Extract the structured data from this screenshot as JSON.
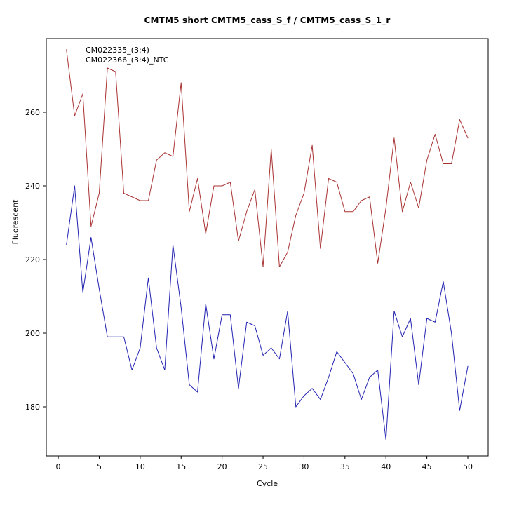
{
  "chart_data": {
    "type": "line",
    "title": "CMTM5 short CMTM5_cass_S_f / CMTM5_cass_S_1_r",
    "xlabel": "Cycle",
    "ylabel": "Fluorescent",
    "xlim": [
      -1.46,
      52.48
    ],
    "ylim": [
      166.67,
      280
    ],
    "xticks": [
      0,
      5,
      10,
      15,
      20,
      25,
      30,
      35,
      40,
      45,
      50
    ],
    "yticks": [
      180,
      200,
      220,
      240,
      260
    ],
    "grid": false,
    "legend_position": "top-left-inside",
    "x": [
      1,
      2,
      3,
      4,
      5,
      6,
      7,
      8,
      9,
      10,
      11,
      12,
      13,
      14,
      15,
      16,
      17,
      18,
      19,
      20,
      21,
      22,
      23,
      24,
      25,
      26,
      27,
      28,
      29,
      30,
      31,
      32,
      33,
      34,
      35,
      36,
      37,
      38,
      39,
      40,
      41,
      42,
      43,
      44,
      45,
      46,
      47,
      48,
      49,
      50
    ],
    "series": [
      {
        "name": "CM022335_(3:4)",
        "color": "#2222B2",
        "values": [
          224,
          240,
          211,
          226,
          212,
          199,
          199,
          199,
          190,
          196,
          215,
          196,
          190,
          224,
          207,
          186,
          184,
          208,
          193,
          205,
          205,
          185,
          203,
          202,
          194,
          196,
          193,
          206,
          180,
          183,
          185,
          182,
          188,
          195,
          192,
          189,
          182,
          188,
          190,
          171,
          206,
          199,
          204,
          186,
          204,
          203,
          214,
          200,
          179,
          191
        ]
      },
      {
        "name": "CM022366_(3:4)_NTC",
        "color": "#A93232",
        "values": [
          277,
          259,
          265,
          229,
          238,
          272,
          271,
          238,
          237,
          236,
          236,
          247,
          249,
          248,
          268,
          233,
          242,
          227,
          240,
          240,
          241,
          225,
          233,
          239,
          218,
          250,
          218,
          222,
          232,
          238,
          251,
          223,
          242,
          241,
          233,
          233,
          236,
          237,
          219,
          234,
          253,
          233,
          241,
          234,
          247,
          254,
          246,
          246,
          258,
          253
        ]
      }
    ]
  }
}
